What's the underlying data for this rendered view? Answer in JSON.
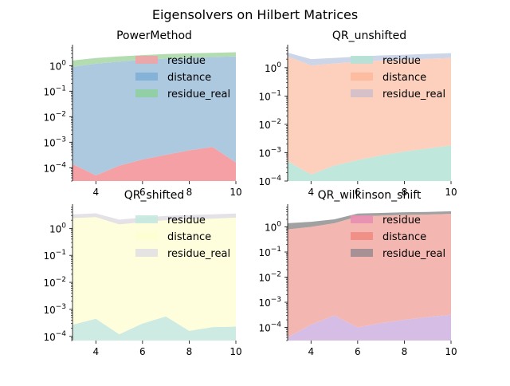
{
  "figure_title": "Eigensolvers on Hilbert Matrices",
  "chart_data": [
    {
      "type": "area",
      "title": "PowerMethod",
      "x": [
        3,
        4,
        5,
        6,
        7,
        8,
        9,
        10
      ],
      "xlim": [
        3,
        10
      ],
      "xticks": [
        4,
        6,
        8,
        10
      ],
      "yscale": "log",
      "ylim": [
        3e-05,
        5
      ],
      "yticks": [
        "10^-4",
        "10^-3",
        "10^-2",
        "10^-1",
        "10^0"
      ],
      "legend_position": "upper-right",
      "series": [
        {
          "name": "residue",
          "color": "#f4a0a4",
          "values": [
            0.00014,
            5e-05,
            0.00012,
            0.00021,
            0.00032,
            0.00048,
            0.00065,
            0.00016
          ]
        },
        {
          "name": "distance",
          "color": "#adc9e0",
          "values": [
            0.9,
            1.2,
            1.45,
            1.7,
            1.9,
            2.05,
            2.2,
            2.3
          ]
        },
        {
          "name": "residue_real",
          "color": "#b3dcb0",
          "values": [
            0.7,
            0.8,
            0.85,
            0.9,
            0.95,
            1.0,
            1.0,
            1.05
          ]
        }
      ]
    },
    {
      "type": "area",
      "title": "QR_unshifted",
      "x": [
        3,
        4,
        5,
        6,
        7,
        8,
        9,
        10
      ],
      "xlim": [
        3,
        10
      ],
      "xticks": [
        4,
        6,
        8,
        10
      ],
      "yscale": "log",
      "ylim": [
        0.0001,
        5
      ],
      "yticks": [
        "10^-4",
        "10^-3",
        "10^-2",
        "10^-1",
        "10^0"
      ],
      "legend_position": "upper-right",
      "series": [
        {
          "name": "residue",
          "color": "#bfe7dc",
          "values": [
            0.0005,
            0.00017,
            0.00035,
            0.00055,
            0.0008,
            0.0011,
            0.0014,
            0.0018
          ]
        },
        {
          "name": "distance",
          "color": "#fcd0bc",
          "values": [
            2.5,
            1.2,
            1.4,
            1.6,
            1.8,
            1.9,
            2.05,
            2.2
          ]
        },
        {
          "name": "residue_real",
          "color": "#cdd6e9",
          "values": [
            0.9,
            0.8,
            0.8,
            0.85,
            0.9,
            0.95,
            1.0,
            1.05
          ]
        }
      ]
    },
    {
      "type": "area",
      "title": "QR_shifted",
      "x": [
        3,
        4,
        5,
        6,
        7,
        8,
        9,
        10
      ],
      "xlim": [
        3,
        10
      ],
      "xticks": [
        4,
        6,
        8,
        10
      ],
      "yscale": "log",
      "ylim": [
        7e-05,
        6
      ],
      "yticks": [
        "10^-4",
        "10^-3",
        "10^-2",
        "10^-1",
        "10^0"
      ],
      "legend_position": "upper-right",
      "series": [
        {
          "name": "residue",
          "color": "#cdebe2",
          "values": [
            0.00027,
            0.00045,
            0.00012,
            0.0003,
            0.00055,
            0.00016,
            0.00022,
            0.00023
          ]
        },
        {
          "name": "distance",
          "color": "#fefedc",
          "values": [
            2.4,
            2.6,
            1.4,
            1.7,
            2.0,
            2.2,
            2.3,
            2.5
          ]
        },
        {
          "name": "residue_real",
          "color": "#e4e2e6",
          "values": [
            0.9,
            1.0,
            0.7,
            0.8,
            0.9,
            0.95,
            1.0,
            1.05
          ]
        }
      ]
    },
    {
      "type": "area",
      "title": "QR_wilkinson_shift",
      "x": [
        3,
        4,
        5,
        6,
        7,
        8,
        9,
        10
      ],
      "xlim": [
        3,
        10
      ],
      "xticks": [
        4,
        6,
        8,
        10
      ],
      "yscale": "log",
      "ylim": [
        3e-05,
        6
      ],
      "yticks": [
        "10^-4",
        "10^-3",
        "10^-2",
        "10^-1",
        "10^0"
      ],
      "legend_position": "upper-right",
      "series": [
        {
          "name": "residue",
          "color": "#d6bde5",
          "values": [
            4e-05,
            0.00013,
            0.0003,
            0.0001,
            0.00015,
            0.0002,
            0.00026,
            0.00032
          ]
        },
        {
          "name": "distance",
          "color": "#f4b6b0",
          "values": [
            0.8,
            1.0,
            1.4,
            2.6,
            2.8,
            3.0,
            3.1,
            3.3
          ]
        },
        {
          "name": "residue_real",
          "color": "#a1a1a1",
          "values": [
            0.6,
            0.6,
            0.6,
            0.8,
            0.8,
            0.85,
            0.85,
            0.9
          ]
        }
      ]
    }
  ],
  "legend_swatch_colors": [
    [
      "#f0a3a5",
      "#7fb0d6",
      "#8fcfa1"
    ],
    [
      "#b5e1d5",
      "#fdb89b",
      "#d1bfc9"
    ],
    [
      "#c5e9df",
      "#fefed1",
      "#e3e0e3"
    ],
    [
      "#e58fb1",
      "#ef8c82",
      "#a08d92"
    ]
  ]
}
